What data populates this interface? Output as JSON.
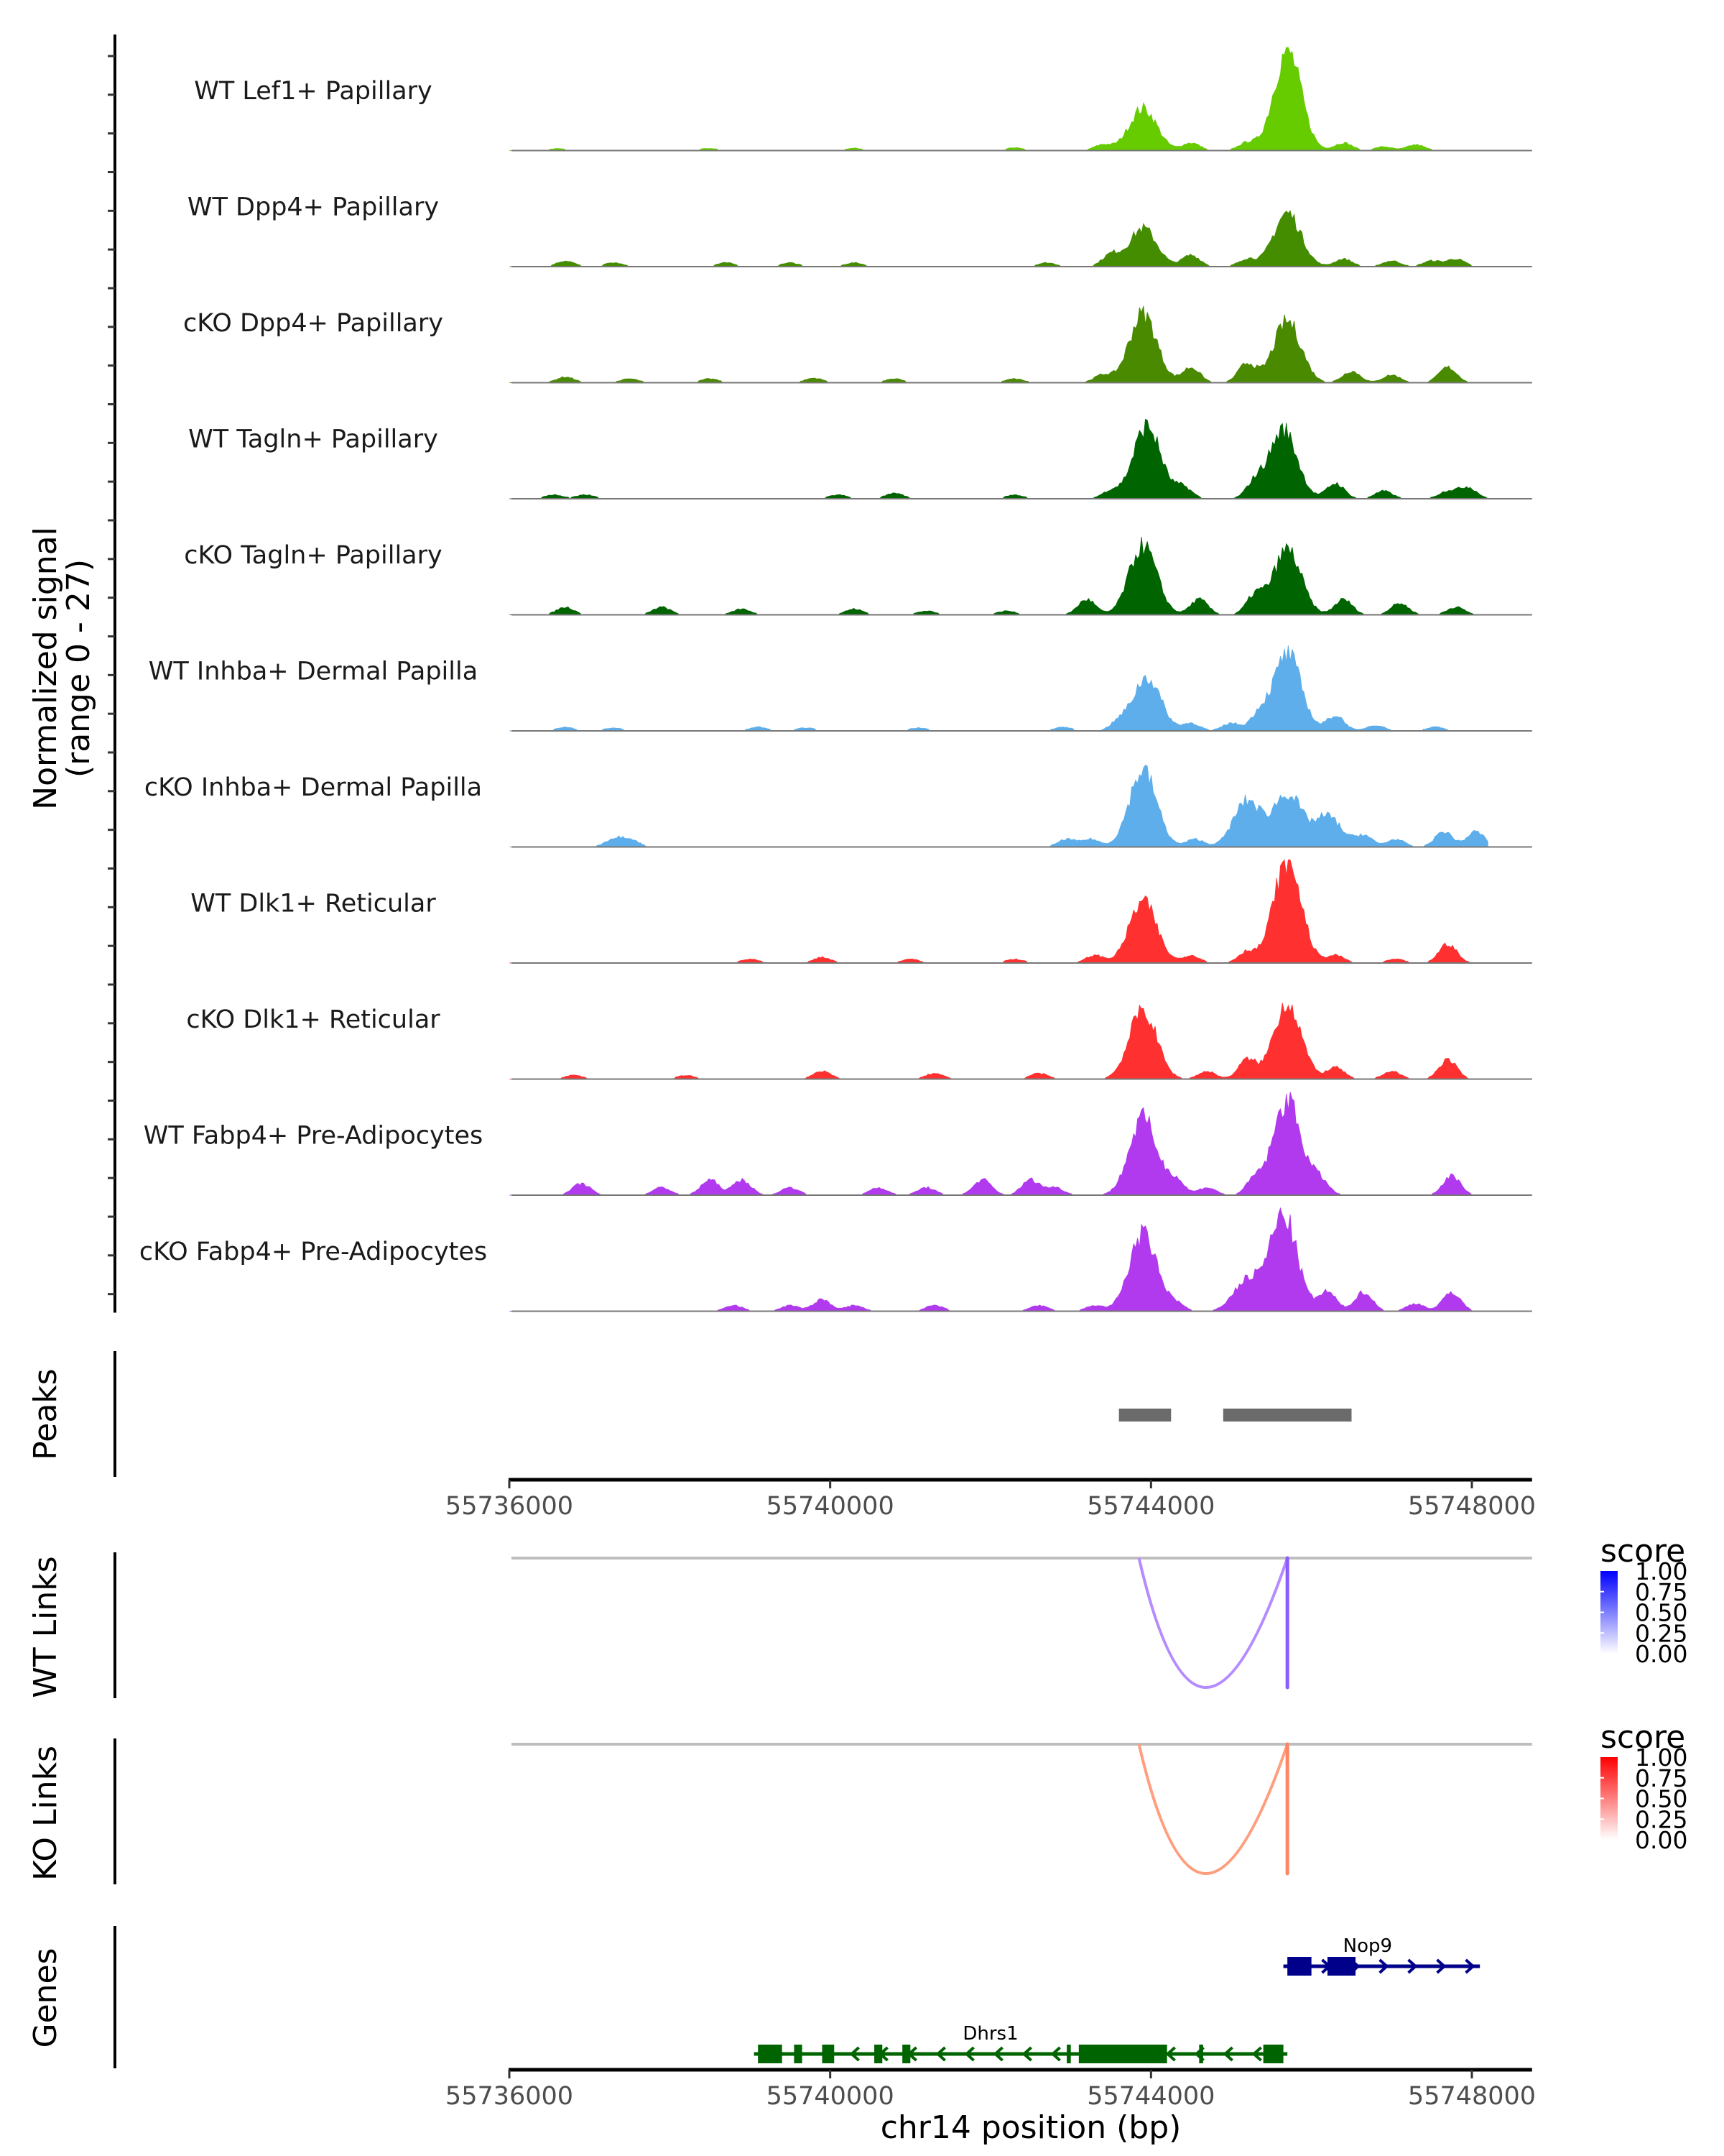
{
  "chart_data": {
    "type": "area",
    "title": "",
    "ylabel": "Normalized signal\n(range 0 - 27)",
    "ylabel_lines": [
      "Normalized signal",
      "(range 0 - 27)"
    ],
    "ylim": [
      0,
      27
    ],
    "xlabel": "chr14 position (bp)",
    "xlim": [
      55735300,
      55748750
    ],
    "x_ticks": [
      55736000,
      55740000,
      55744000,
      55748000
    ],
    "x_tick_labels": [
      "55736000",
      "55740000",
      "55744000",
      "55748000"
    ],
    "coverage_tracks": [
      {
        "name": "WT Lef1+ Papillary",
        "color": "#66CC00",
        "peaks": [
          [
            55736600,
            0.5
          ],
          [
            55738500,
            0.6
          ],
          [
            55740300,
            0.6
          ],
          [
            55742300,
            0.7
          ],
          [
            55743400,
            1.5
          ],
          [
            55743900,
            11
          ],
          [
            55744500,
            2
          ],
          [
            55745200,
            2
          ],
          [
            55745700,
            26
          ],
          [
            55746400,
            2
          ],
          [
            55746900,
            1
          ],
          [
            55747300,
            1.5
          ]
        ]
      },
      {
        "name": "WT Dpp4+ Papillary",
        "color": "#448C00",
        "peaks": [
          [
            55736700,
            1.5
          ],
          [
            55737300,
            1
          ],
          [
            55738700,
            1
          ],
          [
            55739500,
            1
          ],
          [
            55740300,
            1
          ],
          [
            55742700,
            1
          ],
          [
            55743500,
            3
          ],
          [
            55743900,
            10
          ],
          [
            55744500,
            3
          ],
          [
            55745200,
            2
          ],
          [
            55745700,
            14
          ],
          [
            55746400,
            2
          ],
          [
            55747000,
            1.5
          ],
          [
            55747500,
            1.5
          ],
          [
            55747800,
            2
          ]
        ]
      },
      {
        "name": "cKO Dpp4+ Papillary",
        "color": "#4A8A00",
        "peaks": [
          [
            55736700,
            1.5
          ],
          [
            55737500,
            1
          ],
          [
            55738500,
            1
          ],
          [
            55739800,
            1.2
          ],
          [
            55740800,
            1
          ],
          [
            55742300,
            1
          ],
          [
            55743400,
            2
          ],
          [
            55743900,
            18
          ],
          [
            55744500,
            4
          ],
          [
            55745200,
            5
          ],
          [
            55745700,
            16
          ],
          [
            55746500,
            3
          ],
          [
            55747000,
            2
          ],
          [
            55747700,
            4
          ]
        ]
      },
      {
        "name": "WT Tagln+ Papillary",
        "color": "#006400",
        "peaks": [
          [
            55736550,
            1
          ],
          [
            55736950,
            1
          ],
          [
            55740100,
            1
          ],
          [
            55740800,
            1.5
          ],
          [
            55742300,
            1
          ],
          [
            55743500,
            2
          ],
          [
            55743950,
            19
          ],
          [
            55744400,
            3
          ],
          [
            55745300,
            4
          ],
          [
            55745650,
            18
          ],
          [
            55746300,
            4
          ],
          [
            55746900,
            2
          ],
          [
            55747700,
            2
          ],
          [
            55747950,
            3
          ]
        ]
      },
      {
        "name": "cKO Tagln+ Papillary",
        "color": "#006400",
        "peaks": [
          [
            55736700,
            2
          ],
          [
            55737900,
            2
          ],
          [
            55738900,
            1.5
          ],
          [
            55740300,
            1.5
          ],
          [
            55741200,
            1
          ],
          [
            55742200,
            1
          ],
          [
            55743200,
            4
          ],
          [
            55743900,
            18
          ],
          [
            55744600,
            4
          ],
          [
            55745300,
            5
          ],
          [
            55745700,
            17
          ],
          [
            55746400,
            4
          ],
          [
            55747100,
            3
          ],
          [
            55747800,
            2
          ]
        ]
      },
      {
        "name": "WT Inhba+ Dermal Papilla",
        "color": "#5EAEEB",
        "peaks": [
          [
            55736700,
            1
          ],
          [
            55737300,
            0.8
          ],
          [
            55739100,
            1
          ],
          [
            55739700,
            0.8
          ],
          [
            55741100,
            0.8
          ],
          [
            55742900,
            1
          ],
          [
            55743600,
            2
          ],
          [
            55743950,
            14
          ],
          [
            55744500,
            2
          ],
          [
            55745000,
            2
          ],
          [
            55745350,
            4
          ],
          [
            55745700,
            20
          ],
          [
            55746300,
            4
          ],
          [
            55746800,
            1.5
          ],
          [
            55747550,
            1
          ]
        ]
      },
      {
        "name": "cKO Inhba+ Dermal Papilla",
        "color": "#5EAEEB",
        "peaks": [
          [
            55737300,
            2
          ],
          [
            55737500,
            2
          ],
          [
            55742950,
            2
          ],
          [
            55743250,
            2
          ],
          [
            55743900,
            20
          ],
          [
            55744550,
            2
          ],
          [
            55745200,
            12
          ],
          [
            55745700,
            14
          ],
          [
            55746200,
            8
          ],
          [
            55746650,
            3
          ],
          [
            55747050,
            2
          ],
          [
            55747650,
            4
          ],
          [
            55748050,
            4
          ]
        ]
      },
      {
        "name": "WT Dlk1+ Reticular",
        "color": "#FF3030",
        "peaks": [
          [
            55739000,
            1
          ],
          [
            55739900,
            1.5
          ],
          [
            55741000,
            1
          ],
          [
            55742300,
            1
          ],
          [
            55743300,
            2
          ],
          [
            55743900,
            16
          ],
          [
            55744500,
            2
          ],
          [
            55745200,
            3
          ],
          [
            55745700,
            27
          ],
          [
            55746300,
            2
          ],
          [
            55747050,
            1
          ],
          [
            55747700,
            5
          ]
        ]
      },
      {
        "name": "cKO Dlk1+ Reticular",
        "color": "#FF3030",
        "peaks": [
          [
            55736800,
            1
          ],
          [
            55738200,
            1
          ],
          [
            55739900,
            2
          ],
          [
            55741300,
            1.5
          ],
          [
            55742600,
            1.5
          ],
          [
            55743900,
            18
          ],
          [
            55744700,
            2
          ],
          [
            55745200,
            5
          ],
          [
            55745700,
            20
          ],
          [
            55746300,
            3
          ],
          [
            55747000,
            2
          ],
          [
            55747700,
            5
          ]
        ]
      },
      {
        "name": "WT Fabp4+ Pre-Adipocytes",
        "color": "#B23AEE",
        "peaks": [
          [
            55736900,
            3
          ],
          [
            55737900,
            2
          ],
          [
            55738500,
            4
          ],
          [
            55738900,
            4
          ],
          [
            55739500,
            2
          ],
          [
            55740600,
            2
          ],
          [
            55741200,
            2
          ],
          [
            55741900,
            4
          ],
          [
            55742500,
            4
          ],
          [
            55742800,
            2
          ],
          [
            55743900,
            20
          ],
          [
            55744300,
            4
          ],
          [
            55744700,
            2
          ],
          [
            55745300,
            4
          ],
          [
            55745700,
            25
          ],
          [
            55746100,
            4
          ],
          [
            55747750,
            5
          ]
        ]
      },
      {
        "name": "cKO Fabp4+ Pre-Adipocytes",
        "color": "#B23AEE",
        "peaks": [
          [
            55738800,
            1.5
          ],
          [
            55739500,
            1.5
          ],
          [
            55739900,
            3
          ],
          [
            55740300,
            1.5
          ],
          [
            55741300,
            1.5
          ],
          [
            55742600,
            1.5
          ],
          [
            55743300,
            1.5
          ],
          [
            55743900,
            20
          ],
          [
            55744300,
            2
          ],
          [
            55745200,
            8
          ],
          [
            55745650,
            25
          ],
          [
            55746200,
            5
          ],
          [
            55746650,
            5
          ],
          [
            55747300,
            2
          ],
          [
            55747750,
            5
          ]
        ]
      }
    ],
    "peaks_track": {
      "label": "Peaks",
      "color": "#6B6B6B",
      "regions": [
        [
          55743600,
          55744250
        ],
        [
          55744900,
          55746500
        ]
      ]
    },
    "links_tracks": [
      {
        "label": "WT Links",
        "baseline_color": "#BEBEBE",
        "links": [
          {
            "start": 55743850,
            "end": 55745700,
            "score": 0.45,
            "color": "#B58BFF"
          },
          {
            "start": 55745700,
            "end": 55745700,
            "score": 0.7,
            "color": "#8B5CFF"
          }
        ],
        "legend": {
          "title": "score",
          "low": "#FFFFFF",
          "high": "#0000FF",
          "ticks": [
            "1.00",
            "0.75",
            "0.50",
            "0.25",
            "0.00"
          ]
        }
      },
      {
        "label": "KO Links",
        "baseline_color": "#BEBEBE",
        "links": [
          {
            "start": 55743850,
            "end": 55745700,
            "score": 0.45,
            "color": "#FF9E7E"
          },
          {
            "start": 55745700,
            "end": 55745700,
            "score": 0.6,
            "color": "#FF8565"
          }
        ],
        "legend": {
          "title": "score",
          "low": "#FFFFFF",
          "high": "#FF0000",
          "ticks": [
            "1.00",
            "0.75",
            "0.50",
            "0.25",
            "0.00"
          ]
        }
      }
    ],
    "genes_track": {
      "label": "Genes",
      "genes": [
        {
          "name": "Nop9",
          "strand": "+",
          "color": "#00008B",
          "start": 55745650,
          "end": 55748100,
          "exons": [
            [
              55745700,
              55746000
            ],
            [
              55746200,
              55746550
            ]
          ],
          "row": 0,
          "label_pos": 55746700
        },
        {
          "name": "Dhrs1",
          "strand": "-",
          "color": "#006400",
          "start": 55739050,
          "end": 55745700,
          "exons": [
            [
              55739100,
              55739400
            ],
            [
              55739550,
              55739650
            ],
            [
              55739900,
              55740050
            ],
            [
              55740550,
              55740650
            ],
            [
              55740900,
              55741000
            ],
            [
              55742950,
              55743000
            ],
            [
              55743100,
              55744200
            ],
            [
              55744600,
              55744650
            ],
            [
              55745400,
              55745650
            ]
          ],
          "row": 1,
          "label_pos": 55742000
        }
      ]
    }
  }
}
